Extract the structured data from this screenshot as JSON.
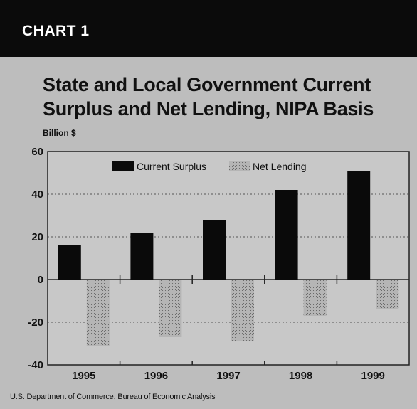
{
  "banner": {
    "label": "CHART 1"
  },
  "chart_data": {
    "type": "bar",
    "title": "State and Local Government Current Surplus and Net Lending, NIPA Basis",
    "ylabel": "Billion $",
    "categories": [
      "1995",
      "1996",
      "1997",
      "1998",
      "1999"
    ],
    "series": [
      {
        "name": "Current Surplus",
        "values": [
          16,
          22,
          28,
          42,
          51
        ],
        "color": "#0a0a0a"
      },
      {
        "name": "Net Lending",
        "values": [
          -31,
          -27,
          -29,
          -17,
          -14
        ],
        "color": "#9a9a9a"
      }
    ],
    "ylim": [
      -40,
      60
    ],
    "yticks": [
      60,
      40,
      20,
      0,
      -20,
      -40
    ],
    "grid": true,
    "legend": "top"
  },
  "source": "U.S. Department of Commerce, Bureau of Economic Analysis",
  "colors": {
    "background": "#bdbdbd",
    "banner": "#0b0b0b",
    "plot_background": "#c8c8c8"
  }
}
